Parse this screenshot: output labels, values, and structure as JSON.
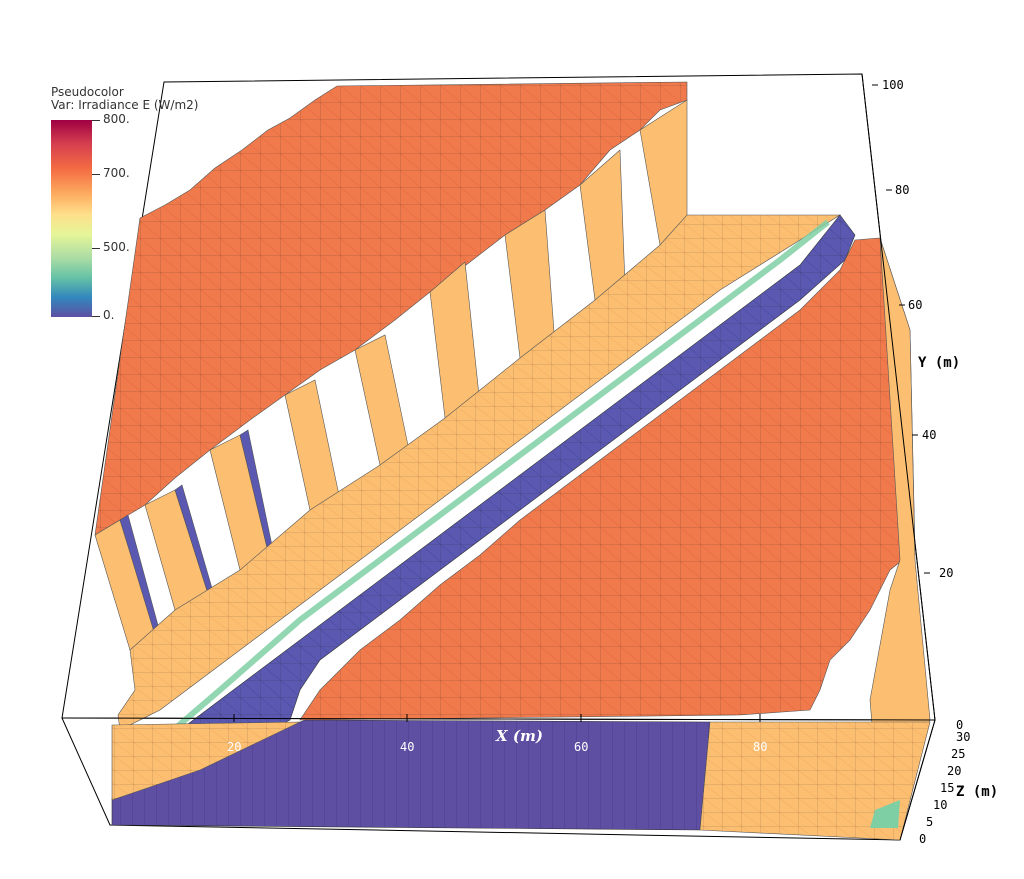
{
  "legend": {
    "title": "Pseudocolor",
    "var_label": "Var: Irradiance E (W/m2)",
    "ticks": [
      "800.",
      "700.",
      "500.",
      "0."
    ]
  },
  "axes": {
    "x": {
      "title": "X (m)",
      "ticks": [
        "20",
        "40",
        "60",
        "80"
      ]
    },
    "y": {
      "title": "Y (m)",
      "ticks": [
        "0",
        "20",
        "40",
        "60",
        "80",
        "100"
      ]
    },
    "z": {
      "title": "Z (m)",
      "ticks": [
        "0",
        "5",
        "10",
        "15",
        "20",
        "25",
        "30"
      ]
    }
  },
  "colors": {
    "high": "#f07a4c",
    "mid": "#fcc074",
    "light": "#fee08b",
    "teal": "#7fcfa5",
    "low": "#5a58b0",
    "dark_low": "#5e4fa2"
  }
}
